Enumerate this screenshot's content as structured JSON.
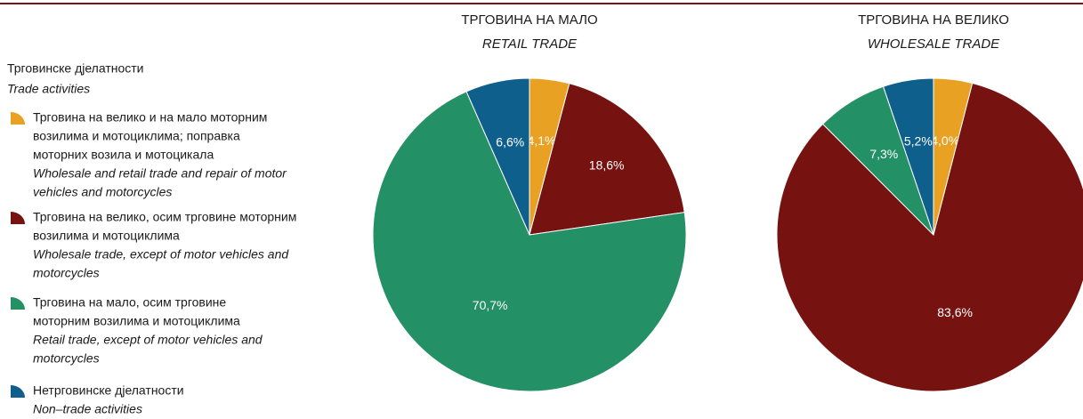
{
  "legend": {
    "title": "Трговинске дјелатности",
    "subtitle": "Trade activities",
    "items": [
      {
        "color": "#e8a122",
        "name_lines": [
          "Трговина на велико и на мало моторним",
          "возилима и мотоциклима; поправка",
          "моторних возила и мотоцикала"
        ],
        "name_en_lines": [
          "Wholesale and retail trade and repair of motor",
          "vehicles and motorcycles"
        ]
      },
      {
        "color": "#76120f",
        "name_lines": [
          "Трговина на велико, осим трговине моторним",
          "возилима и мотоциклима"
        ],
        "name_en_lines": [
          "Wholesale trade, except of motor vehicles and",
          "motorcycles"
        ]
      },
      {
        "color": "#249066",
        "name_lines": [
          "Трговина на мало, осим трговине",
          "моторним возилима и мотоциклима"
        ],
        "name_en_lines": [
          "Retail trade, except of motor vehicles and",
          "motorcycles"
        ]
      },
      {
        "color": "#0f5f8c",
        "name_lines": [
          "Нетрговинске дјелатности"
        ],
        "name_en_lines": [
          "Non–trade activities"
        ]
      }
    ]
  },
  "chart_data": [
    {
      "type": "pie",
      "title": "ТРГОВИНА НА МАЛО",
      "subtitle": "RETAIL TRADE",
      "values": [
        4.1,
        18.6,
        70.7,
        6.6
      ],
      "value_labels": [
        "4,1%",
        "18,6%",
        "70,7%",
        "6,6%"
      ]
    },
    {
      "type": "pie",
      "title": "ТРГОВИНА НА ВЕЛИКО",
      "subtitle": "WHOLESALE TRADE",
      "values": [
        4.0,
        83.6,
        7.3,
        5.2
      ],
      "value_labels": [
        "4,0%",
        "83,6%",
        "7,3%",
        "5,2%"
      ]
    }
  ]
}
